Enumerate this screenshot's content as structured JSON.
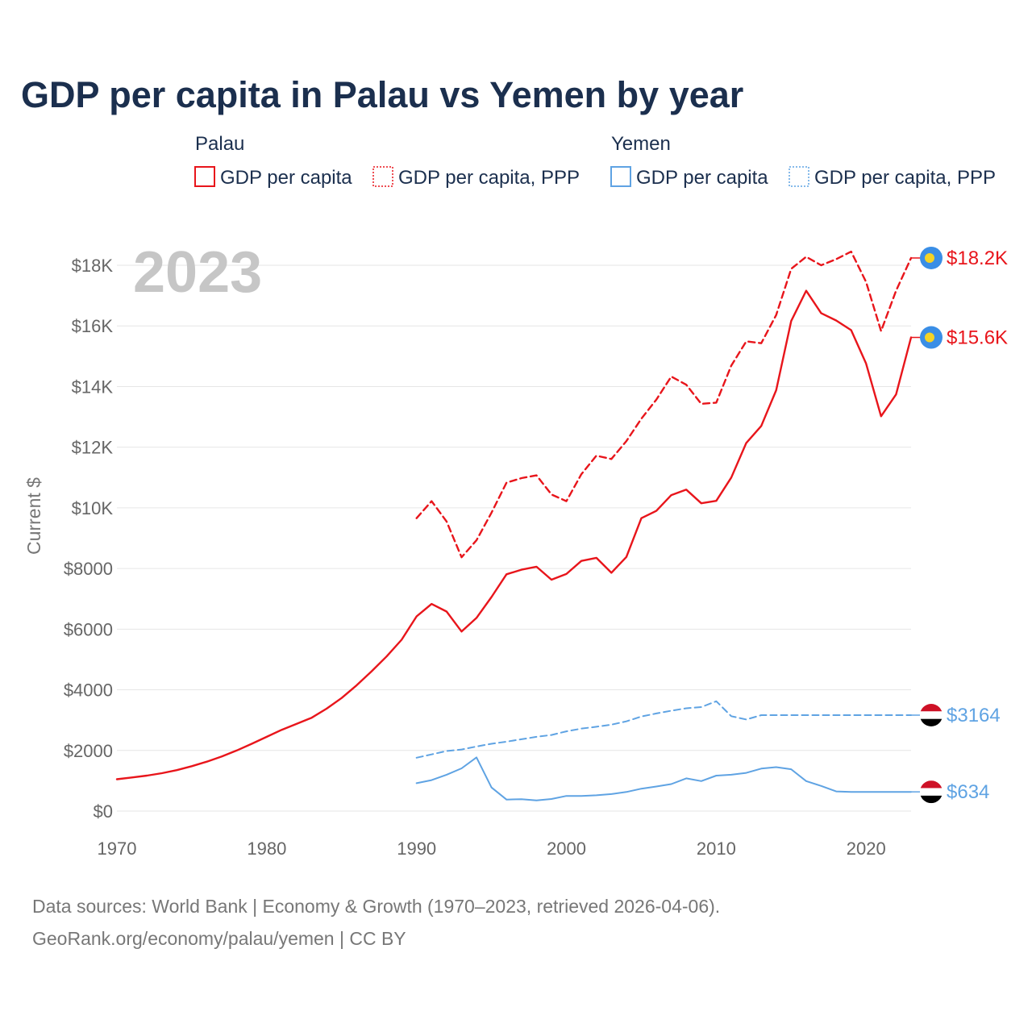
{
  "colors": {
    "palau": "#e8151b",
    "yemen": "#5fa3e3",
    "title": "#1b2f4e",
    "muted": "#777777",
    "year": "#c6c6c6"
  },
  "legend": {
    "groups": [
      {
        "name": "Palau",
        "color": "#e8151b",
        "items": [
          {
            "label": "GDP per capita",
            "style": "solid"
          },
          {
            "label": "GDP per capita, PPP",
            "style": "dotted"
          }
        ]
      },
      {
        "name": "Yemen",
        "color": "#5fa3e3",
        "items": [
          {
            "label": "GDP per capita",
            "style": "solid"
          },
          {
            "label": "GDP per capita, PPP",
            "style": "dotted"
          }
        ]
      }
    ]
  },
  "year_label": "2023",
  "footer": {
    "line1": "Data sources: World Bank | Economy & Growth (1970–2023, retrieved 2026-04-06).",
    "line2": "GeoRank.org/economy/palau/yemen | CC BY"
  },
  "chart_data": {
    "type": "line",
    "title": "GDP per capita in Palau vs Yemen by year",
    "xlabel": "",
    "ylabel": "Current $",
    "xlim": [
      1970,
      2023
    ],
    "ylim": [
      0,
      18000
    ],
    "x_ticks": [
      1970,
      1980,
      1990,
      2000,
      2010,
      2020
    ],
    "y_ticks": [
      {
        "value": 0,
        "label": "$0"
      },
      {
        "value": 2000,
        "label": "$2000"
      },
      {
        "value": 4000,
        "label": "$4000"
      },
      {
        "value": 6000,
        "label": "$6000"
      },
      {
        "value": 8000,
        "label": "$8000"
      },
      {
        "value": 10000,
        "label": "$10K"
      },
      {
        "value": 12000,
        "label": "$12K"
      },
      {
        "value": 14000,
        "label": "$14K"
      },
      {
        "value": 16000,
        "label": "$16K"
      },
      {
        "value": 18000,
        "label": "$18K"
      }
    ],
    "series": [
      {
        "name": "Palau GDP per capita",
        "country": "Palau",
        "color": "#e8151b",
        "dash": "solid",
        "end_label": "$15.6K",
        "x": [
          1970,
          1971,
          1972,
          1973,
          1974,
          1975,
          1976,
          1977,
          1978,
          1979,
          1980,
          1981,
          1982,
          1983,
          1984,
          1985,
          1986,
          1987,
          1988,
          1989,
          1990,
          1991,
          1992,
          1993,
          1994,
          1995,
          1996,
          1997,
          1998,
          1999,
          2000,
          2001,
          2002,
          2003,
          2004,
          2005,
          2006,
          2007,
          2008,
          2009,
          2010,
          2011,
          2012,
          2013,
          2014,
          2015,
          2016,
          2017,
          2018,
          2019,
          2020,
          2021,
          2022,
          2023
        ],
        "y": [
          1050,
          1110,
          1170,
          1250,
          1350,
          1480,
          1630,
          1800,
          2000,
          2220,
          2450,
          2680,
          2880,
          3080,
          3380,
          3730,
          4150,
          4610,
          5100,
          5650,
          6420,
          6830,
          6580,
          5920,
          6370,
          7060,
          7810,
          7960,
          8060,
          7630,
          7820,
          8250,
          8350,
          7860,
          8380,
          9660,
          9900,
          10420,
          10600,
          10150,
          10230,
          11000,
          12140,
          12700,
          13880,
          16160,
          17160,
          16420,
          16180,
          15860,
          14760,
          13020,
          13740,
          15620
        ]
      },
      {
        "name": "Palau GDP per capita, PPP",
        "country": "Palau",
        "color": "#e8151b",
        "dash": "dashed",
        "end_label": "$18.2K",
        "x": [
          1990,
          1991,
          1992,
          1993,
          1994,
          1995,
          1996,
          1997,
          1998,
          1999,
          2000,
          2001,
          2002,
          2003,
          2004,
          2005,
          2006,
          2007,
          2008,
          2009,
          2010,
          2011,
          2012,
          2013,
          2014,
          2015,
          2016,
          2017,
          2018,
          2019,
          2020,
          2021,
          2022,
          2023
        ],
        "y": [
          9660,
          10220,
          9550,
          8370,
          8930,
          9840,
          10830,
          10980,
          11070,
          10440,
          10220,
          11110,
          11720,
          11610,
          12200,
          12940,
          13570,
          14330,
          14060,
          13430,
          13470,
          14690,
          15490,
          15430,
          16360,
          17880,
          18280,
          18000,
          18200,
          18450,
          17450,
          15830,
          17160,
          18240
        ]
      },
      {
        "name": "Yemen GDP per capita",
        "country": "Yemen",
        "color": "#5fa3e3",
        "dash": "solid",
        "end_label": "$634",
        "x": [
          1990,
          1991,
          1992,
          1993,
          1994,
          1995,
          1996,
          1997,
          1998,
          1999,
          2000,
          2001,
          2002,
          2003,
          2004,
          2005,
          2006,
          2007,
          2008,
          2009,
          2010,
          2011,
          2012,
          2013,
          2014,
          2015,
          2016,
          2017,
          2018,
          2019,
          2020,
          2021,
          2022,
          2023
        ],
        "y": [
          920,
          1020,
          1200,
          1410,
          1770,
          780,
          380,
          390,
          350,
          400,
          500,
          500,
          520,
          560,
          630,
          740,
          810,
          890,
          1080,
          990,
          1170,
          1200,
          1260,
          1400,
          1450,
          1380,
          990,
          830,
          650,
          634,
          634,
          634,
          634,
          634
        ]
      },
      {
        "name": "Yemen GDP per capita, PPP",
        "country": "Yemen",
        "color": "#5fa3e3",
        "dash": "dashed",
        "end_label": "$3164",
        "x": [
          1990,
          1991,
          1992,
          1993,
          1994,
          1995,
          1996,
          1997,
          1998,
          1999,
          2000,
          2001,
          2002,
          2003,
          2004,
          2005,
          2006,
          2007,
          2008,
          2009,
          2010,
          2011,
          2012,
          2013,
          2014,
          2015,
          2016,
          2017,
          2018,
          2019,
          2020,
          2021,
          2022,
          2023
        ],
        "y": [
          1760,
          1870,
          1980,
          2030,
          2130,
          2220,
          2290,
          2370,
          2450,
          2510,
          2630,
          2720,
          2780,
          2850,
          2960,
          3120,
          3220,
          3310,
          3390,
          3430,
          3620,
          3130,
          3020,
          3164,
          3164,
          3164,
          3164,
          3164,
          3164,
          3164,
          3164,
          3164,
          3164,
          3164
        ]
      }
    ]
  }
}
